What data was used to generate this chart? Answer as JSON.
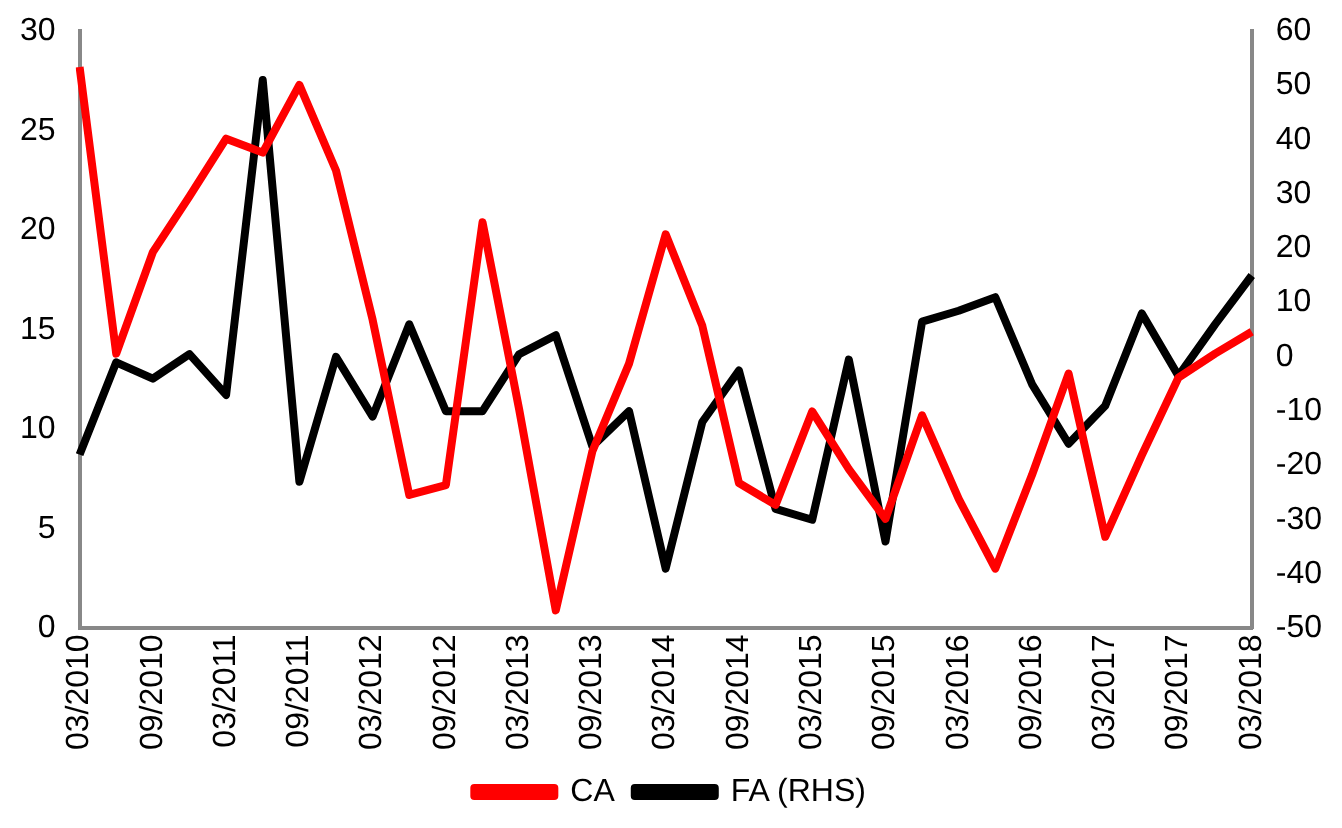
{
  "chart_data": {
    "type": "line",
    "categories": [
      "03/2010",
      null,
      "09/2010",
      null,
      "03/2011",
      null,
      "09/2011",
      null,
      "03/2012",
      null,
      "09/2012",
      null,
      "03/2013",
      null,
      "09/2013",
      null,
      "03/2014",
      null,
      "09/2014",
      null,
      "03/2015",
      null,
      "09/2015",
      null,
      "03/2016",
      null,
      "09/2016",
      null,
      "03/2017",
      null,
      "09/2017",
      null,
      "03/2018"
    ],
    "series": [
      {
        "name": "CA",
        "color": "#ff0000",
        "values": [
          28.2,
          13.8,
          18.9,
          21.7,
          24.6,
          23.9,
          27.3,
          23.0,
          15.5,
          6.7,
          7.2,
          20.4,
          11,
          0.9,
          8.9,
          13.3,
          19.8,
          15.2,
          7.3,
          6.2,
          10.9,
          8.0,
          5.5,
          10.7,
          6.5,
          3.0,
          7.7,
          12.8,
          4.6,
          8.7,
          12.6,
          13.8,
          14.9
        ]
      },
      {
        "name": "FA (RHS)",
        "color": "#000000",
        "axis": "y2",
        "values": [
          -18,
          -1,
          -4,
          0.5,
          -7,
          51,
          -23,
          0,
          -11,
          6,
          -10,
          -10,
          0.5,
          4,
          -16.5,
          -10,
          -39,
          -12,
          -2.5,
          -28,
          -30,
          -0.5,
          -34,
          6.5,
          8.5,
          11,
          -5,
          -16,
          -9,
          8,
          -3.5,
          6,
          15
        ]
      }
    ],
    "ylim": [
      0,
      30
    ],
    "yticks": [
      0,
      5,
      10,
      15,
      20,
      25,
      30
    ],
    "y2lim": [
      -50,
      60
    ],
    "y2ticks": [
      -50,
      -40,
      -30,
      -20,
      -10,
      0,
      10,
      20,
      30,
      40,
      50,
      60
    ],
    "grid": false,
    "legend": "bottom",
    "marker": "none",
    "line_style": "solid"
  }
}
